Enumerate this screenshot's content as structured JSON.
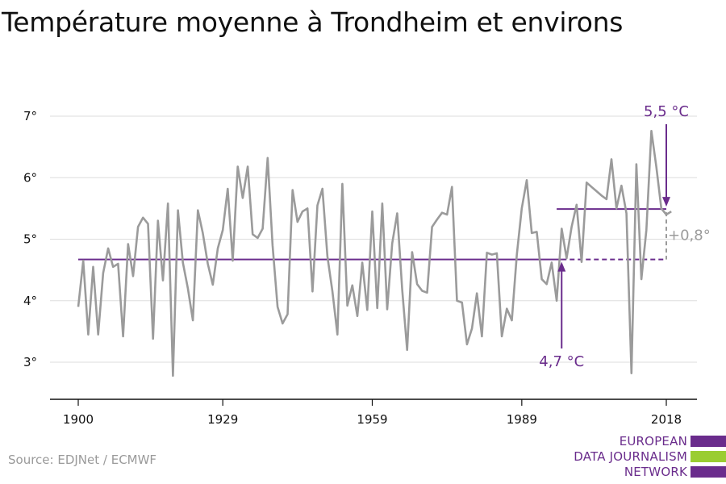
{
  "title": "Température moyenne à Trondheim et environs",
  "source": "Source: EDJNet / ECMWF",
  "logo": {
    "line1": "EUROPEAN",
    "line2": "DATA JOURNALISM",
    "line3": "NETWORK",
    "colors": [
      "#6a2c8c",
      "#9acd32",
      "#6a2c8c"
    ]
  },
  "colors": {
    "series": "#9b9b9b",
    "accent": "#6a2c8c",
    "grid": "#dddddd",
    "axis": "#111111"
  },
  "chart_data": {
    "type": "line",
    "title": "Température moyenne à Trondheim et environs",
    "x_ticks": [
      1900,
      1929,
      1959,
      1989,
      2018
    ],
    "y_ticks": [
      3,
      4,
      5,
      6,
      7
    ],
    "y_tick_labels": [
      "3°",
      "4°",
      "5°",
      "6°",
      "7°"
    ],
    "xlim": [
      1900,
      2018
    ],
    "ylim": [
      2.4,
      7.4
    ],
    "grid": "horizontal",
    "series": [
      {
        "x": [
          1900,
          1901,
          1902,
          1903,
          1904,
          1905,
          1906,
          1907,
          1908,
          1909,
          1910,
          1911,
          1912,
          1913,
          1914,
          1915,
          1916,
          1917,
          1918,
          1919,
          1920,
          1921,
          1922,
          1923,
          1924,
          1925,
          1926,
          1927,
          1928,
          1929,
          1930,
          1931,
          1932,
          1933,
          1934,
          1935,
          1936,
          1937,
          1938,
          1939,
          1940,
          1941,
          1942,
          1943,
          1944,
          1945,
          1946,
          1947,
          1948,
          1949,
          1950,
          1951,
          1952,
          1953,
          1954,
          1955,
          1956,
          1957,
          1958,
          1959,
          1960,
          1961,
          1962,
          1963,
          1964,
          1965,
          1966,
          1967,
          1968,
          1969,
          1970,
          1971,
          1972,
          1973,
          1974,
          1975,
          1976,
          1977,
          1978,
          1979,
          1980,
          1981,
          1982,
          1983,
          1984,
          1985,
          1986,
          1987,
          1988,
          1989,
          1990,
          1991,
          1992,
          1993,
          1994,
          1995,
          1996,
          1997,
          1998,
          1999,
          2000,
          2001,
          2002,
          2003,
          2004,
          2005,
          2006,
          2007,
          2008,
          2009,
          2010,
          2011,
          2012,
          2013,
          2014,
          2015,
          2016,
          2017,
          2018,
          2019
        ],
        "values": [
          3.9,
          4.65,
          3.45,
          4.55,
          3.45,
          4.45,
          4.85,
          4.55,
          4.6,
          3.42,
          4.92,
          4.4,
          5.2,
          5.35,
          5.25,
          3.38,
          5.3,
          4.33,
          5.58,
          2.78,
          5.47,
          4.62,
          4.2,
          3.68,
          5.47,
          5.1,
          4.6,
          4.26,
          4.85,
          5.15,
          5.82,
          4.65,
          6.18,
          5.67,
          6.18,
          5.08,
          5.02,
          5.17,
          6.32,
          4.9,
          3.9,
          3.63,
          3.78,
          5.8,
          5.28,
          5.45,
          5.5,
          4.15,
          5.55,
          5.82,
          4.72,
          4.15,
          3.45,
          5.9,
          3.92,
          4.25,
          3.75,
          4.62,
          3.85,
          5.45,
          3.88,
          5.58,
          3.86,
          4.93,
          5.42,
          4.18,
          3.2,
          4.79,
          4.27,
          4.16,
          4.13,
          5.2,
          5.32,
          5.43,
          5.4,
          5.85,
          4.0,
          3.97,
          3.29,
          3.55,
          4.12,
          3.42,
          4.78,
          4.75,
          4.77,
          3.42,
          3.87,
          3.68,
          4.75,
          5.5,
          5.96,
          5.1,
          5.12,
          4.35,
          4.27,
          4.62,
          4.0,
          5.17,
          4.69,
          5.2,
          5.56,
          4.63,
          5.92,
          5.85,
          5.78,
          5.71,
          5.65,
          6.3,
          5.5,
          5.87,
          5.42,
          2.82,
          6.22,
          4.35,
          5.15,
          6.76,
          6.18,
          5.5,
          5.4,
          5.45
        ]
      }
    ],
    "reference_lines": [
      {
        "label": "4,7 °C",
        "value": 4.67,
        "x_start": 1900,
        "x_end": 2018
      },
      {
        "label": "5,5 °C",
        "value": 5.49,
        "x_start": 1996,
        "x_end": 2018
      }
    ],
    "difference_label": "+0,8°"
  }
}
